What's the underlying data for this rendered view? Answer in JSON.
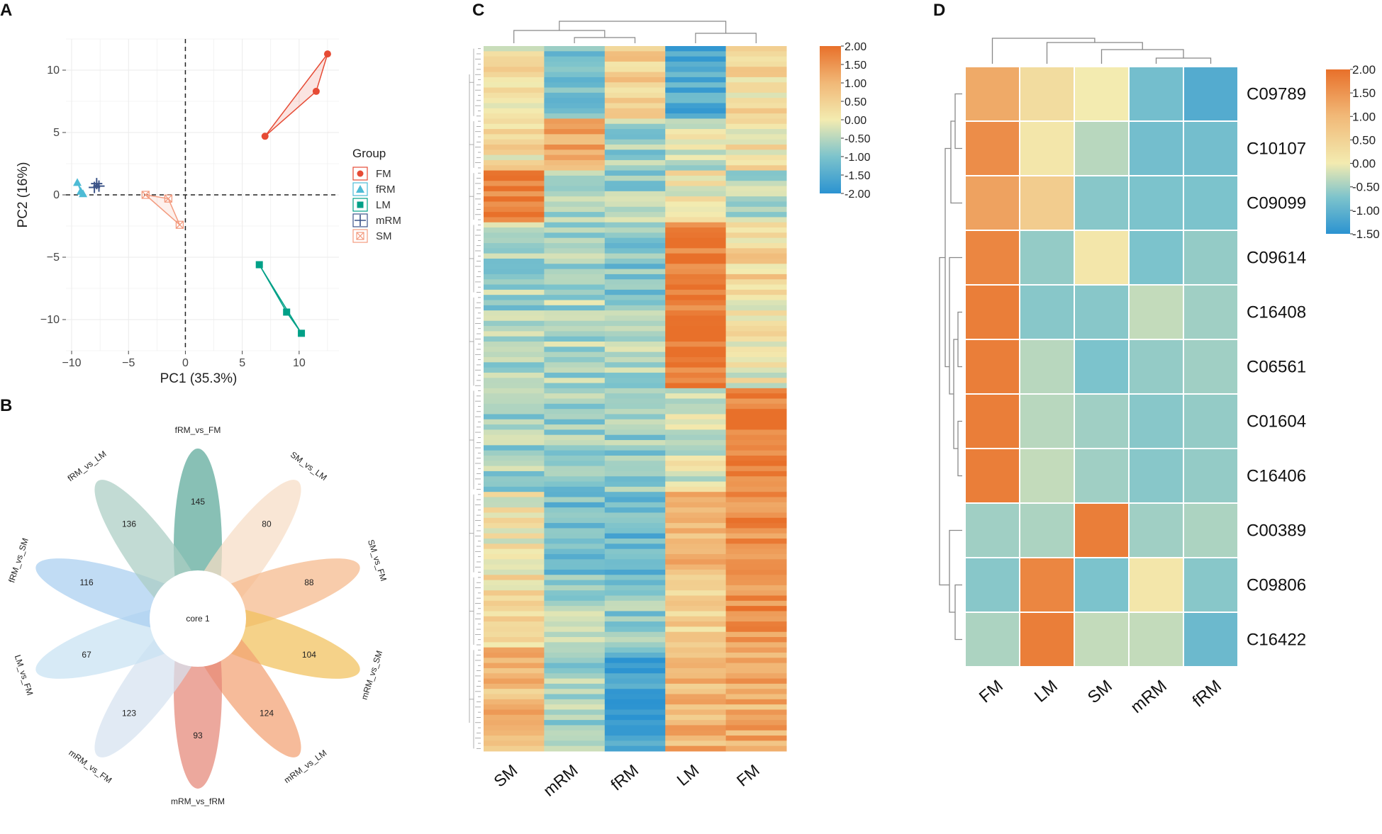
{
  "panel_letters": [
    "A",
    "B",
    "C",
    "D"
  ],
  "colors": {
    "FM": "#e64b35",
    "fRM": "#4dbbd5",
    "LM": "#00a087",
    "mRM": "#3c5488",
    "SM": "#f39b7f",
    "heat_low": "#2b93d1",
    "heat_mid": "#f3ebb0",
    "heat_high": "#e8702a"
  },
  "chart_data": [
    {
      "panel": "A",
      "type": "scatter",
      "title": "",
      "xlabel": "PC1 (35.3%)",
      "ylabel": "PC2 (16%)",
      "xlim": [
        -10.5,
        13.5
      ],
      "ylim": [
        -12.5,
        12.5
      ],
      "xticks": [
        -10,
        -5,
        0,
        5,
        10
      ],
      "yticks": [
        -10,
        -5,
        0,
        5,
        10
      ],
      "xtick_labels": [
        "−10",
        "−5",
        "0",
        "5",
        "10"
      ],
      "ytick_labels": [
        "−10",
        "−5",
        "0",
        "5",
        "10"
      ],
      "legend_title": "Group",
      "series": [
        {
          "name": "FM",
          "shape": "circle",
          "points": [
            [
              7.0,
              4.7
            ],
            [
              11.5,
              8.3
            ],
            [
              12.5,
              11.3
            ]
          ]
        },
        {
          "name": "fRM",
          "shape": "triangle",
          "points": [
            [
              -9.5,
              1.0
            ],
            [
              -9.2,
              0.3
            ],
            [
              -9.0,
              0.1
            ]
          ]
        },
        {
          "name": "LM",
          "shape": "square",
          "points": [
            [
              6.5,
              -5.6
            ],
            [
              8.9,
              -9.4
            ],
            [
              10.2,
              -11.1
            ]
          ]
        },
        {
          "name": "mRM",
          "shape": "plus",
          "points": [
            [
              -7.8,
              0.9
            ],
            [
              -7.6,
              0.7
            ],
            [
              -8.0,
              0.6
            ]
          ]
        },
        {
          "name": "SM",
          "shape": "square-x",
          "points": [
            [
              -3.5,
              0.0
            ],
            [
              -1.5,
              -0.3
            ],
            [
              -0.5,
              -2.4
            ]
          ]
        }
      ]
    },
    {
      "panel": "B",
      "type": "flower",
      "center_label": "core 1",
      "petals": [
        {
          "label": "fRM_vs_FM",
          "value": 145,
          "color": "#5aa898"
        },
        {
          "label": "SM_vs_LM",
          "value": 80,
          "color": "#f6dcc5"
        },
        {
          "label": "SM_vs_FM",
          "value": 88,
          "color": "#f5b88a"
        },
        {
          "label": "mRM_vs_SM",
          "value": 104,
          "color": "#f1c15c"
        },
        {
          "label": "mRM_vs_LM",
          "value": 124,
          "color": "#f2a173"
        },
        {
          "label": "mRM_vs_fRM",
          "value": 93,
          "color": "#e58677"
        },
        {
          "label": "mRM_vs_FM",
          "value": 123,
          "color": "#d6e2f0"
        },
        {
          "label": "LM_vs_FM",
          "value": 67,
          "color": "#c8e2f2"
        },
        {
          "label": "fRM_vs_SM",
          "value": 116,
          "color": "#a9cef0"
        },
        {
          "label": "fRM_vs_LM",
          "value": 136,
          "color": "#aacdc4"
        }
      ]
    },
    {
      "panel": "C",
      "type": "heatmap",
      "columns": [
        "SM",
        "mRM",
        "fRM",
        "LM",
        "FM"
      ],
      "colorbar_ticks": [
        "2.00",
        "1.50",
        "1.00",
        "0.50",
        "0.00",
        "-0.50",
        "-1.00",
        "-1.50",
        "-2.00"
      ],
      "color_range": [
        -2,
        2
      ],
      "row_clusters": [
        {
          "rows": 14,
          "levels": [
            0.2,
            -1.2,
            0.6,
            -1.6,
            0.3
          ]
        },
        {
          "rows": 10,
          "levels": [
            0.3,
            1.2,
            -0.7,
            -0.3,
            0.2
          ]
        },
        {
          "rows": 10,
          "levels": [
            1.8,
            -0.8,
            -0.7,
            0.1,
            -0.6
          ]
        },
        {
          "rows": 14,
          "levels": [
            -0.6,
            -0.7,
            -1.0,
            1.9,
            0.4
          ]
        },
        {
          "rows": 18,
          "levels": [
            -0.7,
            -0.6,
            -0.6,
            1.9,
            0.0
          ]
        },
        {
          "rows": 20,
          "levels": [
            -0.7,
            -0.8,
            -0.8,
            -0.2,
            1.9
          ]
        },
        {
          "rows": 16,
          "levels": [
            0.1,
            -1.2,
            -1.2,
            0.9,
            1.5
          ]
        },
        {
          "rows": 14,
          "levels": [
            0.3,
            -0.7,
            -0.8,
            0.6,
            1.6
          ]
        },
        {
          "rows": 20,
          "levels": [
            0.9,
            -0.7,
            -1.5,
            1.0,
            1.1
          ]
        }
      ]
    },
    {
      "panel": "D",
      "type": "heatmap",
      "columns": [
        "FM",
        "LM",
        "SM",
        "mRM",
        "fRM"
      ],
      "rows": [
        "C09789",
        "C10107",
        "C09099",
        "C09614",
        "C16408",
        "C06561",
        "C01604",
        "C16406",
        "C00389",
        "C09806",
        "C16422"
      ],
      "values": [
        [
          1.2,
          0.3,
          0.0,
          -1.1,
          -1.5
        ],
        [
          1.6,
          0.1,
          -0.5,
          -1.1,
          -1.1
        ],
        [
          1.3,
          0.6,
          -0.9,
          -1.0,
          -1.0
        ],
        [
          1.7,
          -0.8,
          0.1,
          -1.0,
          -0.8
        ],
        [
          1.8,
          -0.9,
          -0.9,
          -0.4,
          -0.7
        ],
        [
          1.8,
          -0.5,
          -1.0,
          -0.8,
          -0.7
        ],
        [
          1.8,
          -0.5,
          -0.7,
          -0.9,
          -0.8
        ],
        [
          1.8,
          -0.4,
          -0.7,
          -0.9,
          -0.8
        ],
        [
          -0.7,
          -0.6,
          1.8,
          -0.7,
          -0.6
        ],
        [
          -0.9,
          1.7,
          -1.0,
          0.1,
          -0.9
        ],
        [
          -0.6,
          1.8,
          -0.4,
          -0.4,
          -1.2
        ]
      ],
      "color_range": [
        -1.5,
        2.0
      ],
      "colorbar_ticks": [
        "2.00",
        "1.50",
        "1.00",
        "0.50",
        "0.00",
        "-0.50",
        "-1.00",
        "-1.50"
      ]
    }
  ]
}
